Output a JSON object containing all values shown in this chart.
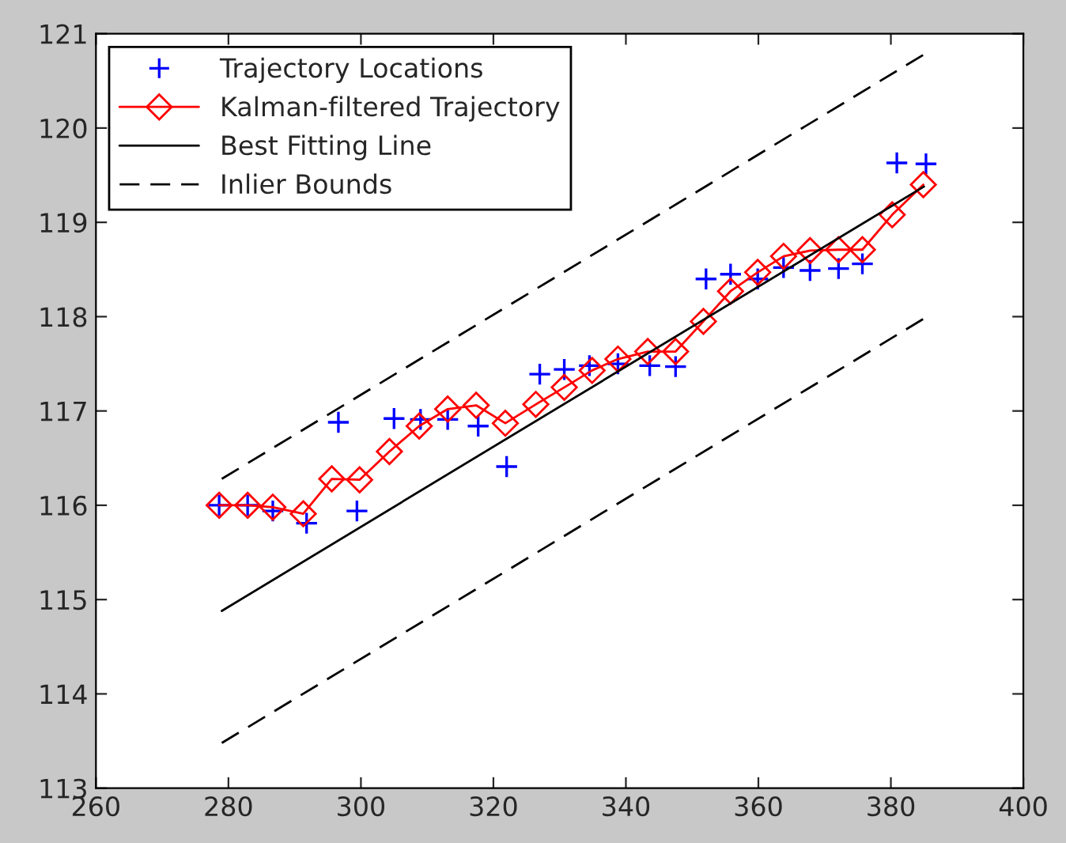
{
  "chart_data": {
    "type": "line",
    "xlim": [
      260,
      400
    ],
    "xticks": [
      260,
      280,
      300,
      320,
      340,
      360,
      380,
      400
    ],
    "ylim": [
      113,
      121
    ],
    "yticks": [
      113,
      114,
      115,
      116,
      117,
      118,
      119,
      120,
      121
    ],
    "grid": false,
    "legend": "top left",
    "series": [
      {
        "name": "Trajectory Locations",
        "type": "scatter",
        "marker": "cross",
        "color": "#0000ff",
        "x": [
          278.6,
          282.9,
          286.7,
          291.8,
          296.6,
          299.4,
          305.0,
          309.0,
          313.1,
          317.7,
          322.0,
          327.0,
          330.7,
          334.5,
          338.8,
          343.6,
          347.5,
          352.1,
          355.8,
          359.9,
          363.8,
          367.8,
          372.1,
          375.7,
          380.9,
          385.3
        ],
        "values": [
          116.0,
          116.0,
          115.94,
          115.81,
          116.88,
          115.94,
          116.92,
          116.91,
          116.91,
          116.84,
          116.41,
          117.39,
          117.44,
          117.48,
          117.5,
          117.48,
          117.47,
          118.4,
          118.45,
          118.4,
          118.52,
          118.49,
          118.51,
          118.56,
          119.63,
          119.62
        ]
      },
      {
        "name": "Kalman-filtered Trajectory",
        "marker": "diamond",
        "line_style": "solid",
        "color": "#ff0000",
        "x": [
          278.6,
          282.9,
          286.7,
          291.3,
          295.6,
          299.8,
          304.3,
          308.8,
          313.1,
          317.4,
          321.8,
          326.4,
          330.7,
          334.9,
          338.8,
          343.3,
          347.5,
          351.7,
          355.8,
          359.9,
          363.8,
          367.8,
          372.1,
          375.7,
          380.2,
          384.9
        ],
        "values": [
          116.0,
          116.0,
          115.98,
          115.91,
          116.28,
          116.27,
          116.57,
          116.84,
          117.02,
          117.06,
          116.87,
          117.07,
          117.25,
          117.43,
          117.55,
          117.63,
          117.63,
          117.95,
          118.27,
          118.47,
          118.64,
          118.7,
          118.71,
          118.71,
          119.08,
          119.4
        ]
      },
      {
        "name": "Best Fitting Line",
        "marker": "none",
        "line_style": "solid",
        "color": "#000000",
        "x": [
          279,
          385
        ],
        "values": [
          114.88,
          119.38
        ]
      },
      {
        "name": "Inlier Bounds",
        "marker": "none",
        "line_style": "dashed",
        "color": "#000000",
        "x": [
          279,
          385
        ],
        "values": [
          116.28,
          120.78
        ]
      },
      {
        "marker": "none",
        "line_style": "dashed",
        "color": "#000000",
        "x": [
          279,
          385
        ],
        "values": [
          113.48,
          117.98
        ]
      }
    ]
  }
}
